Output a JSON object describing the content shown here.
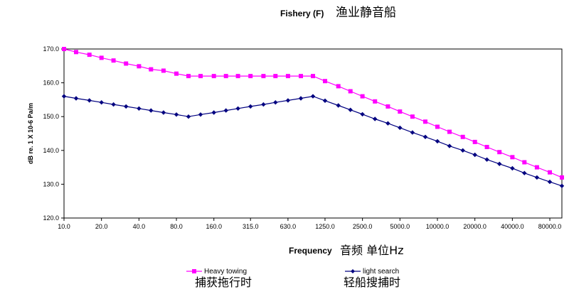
{
  "chart_data": {
    "type": "line",
    "title": "Fishery (F)",
    "title_zh": "渔业静音船",
    "xlabel": "Frequency",
    "xlabel_zh": "音频 单位Hz",
    "ylabel": "dB re. 1 X 10-6 Pa/m",
    "x_scale": "log",
    "xlim": [
      10,
      100000
    ],
    "ylim": [
      120,
      170
    ],
    "y_ticks": [
      "120.0",
      "130.0",
      "140.0",
      "150.0",
      "160.0",
      "170.0"
    ],
    "x_ticks": [
      {
        "value": 10,
        "label": "10.0"
      },
      {
        "value": 20,
        "label": "20.0"
      },
      {
        "value": 40,
        "label": "40.0"
      },
      {
        "value": 80,
        "label": "80.0"
      },
      {
        "value": 160,
        "label": "160.0"
      },
      {
        "value": 315,
        "label": "315.0"
      },
      {
        "value": 630,
        "label": "630.0"
      },
      {
        "value": 1250,
        "label": "1250.0"
      },
      {
        "value": 2500,
        "label": "2500.0"
      },
      {
        "value": 5000,
        "label": "5000.0"
      },
      {
        "value": 10000,
        "label": "10000.0"
      },
      {
        "value": 20000,
        "label": "20000.0"
      },
      {
        "value": 40000,
        "label": "40000.0"
      },
      {
        "value": 80000,
        "label": "80000.0"
      }
    ],
    "grid": false,
    "legend_position": "bottom",
    "x": [
      10,
      12.5,
      16,
      20,
      25,
      31.5,
      40,
      50,
      63,
      80,
      100,
      125,
      160,
      200,
      250,
      315,
      400,
      500,
      630,
      800,
      1000,
      1250,
      1600,
      2000,
      2500,
      3150,
      4000,
      5000,
      6300,
      8000,
      10000,
      12500,
      16000,
      20000,
      25000,
      31500,
      40000,
      50000,
      63000,
      80000,
      100000
    ],
    "series": [
      {
        "name": "Heavy towing",
        "name_zh": "捕获拖行时",
        "color": "#ff00ff",
        "marker": "square",
        "values": [
          170.0,
          169.1,
          168.3,
          167.4,
          166.6,
          165.7,
          164.9,
          164.0,
          163.6,
          162.7,
          162.0,
          162.0,
          162.0,
          162.0,
          162.0,
          162.0,
          162.0,
          162.0,
          162.0,
          162.0,
          162.0,
          160.5,
          159.0,
          157.5,
          156.0,
          154.5,
          153.0,
          151.5,
          150.0,
          148.5,
          147.0,
          145.5,
          144.0,
          142.5,
          141.0,
          139.5,
          138.0,
          136.5,
          135.0,
          133.5,
          132.0
        ]
      },
      {
        "name": "light search",
        "name_zh": "轻船搜捕时",
        "color": "#000080",
        "marker": "diamond",
        "values": [
          156.0,
          155.4,
          154.8,
          154.2,
          153.6,
          153.0,
          152.4,
          151.8,
          151.2,
          150.6,
          150.0,
          150.6,
          151.2,
          151.8,
          152.4,
          153.0,
          153.6,
          154.2,
          154.8,
          155.4,
          156.0,
          154.7,
          153.3,
          152.0,
          150.7,
          149.3,
          148.0,
          146.7,
          145.3,
          144.0,
          142.7,
          141.3,
          140.0,
          138.7,
          137.3,
          136.0,
          134.7,
          133.3,
          132.0,
          130.7,
          129.5
        ]
      }
    ]
  }
}
